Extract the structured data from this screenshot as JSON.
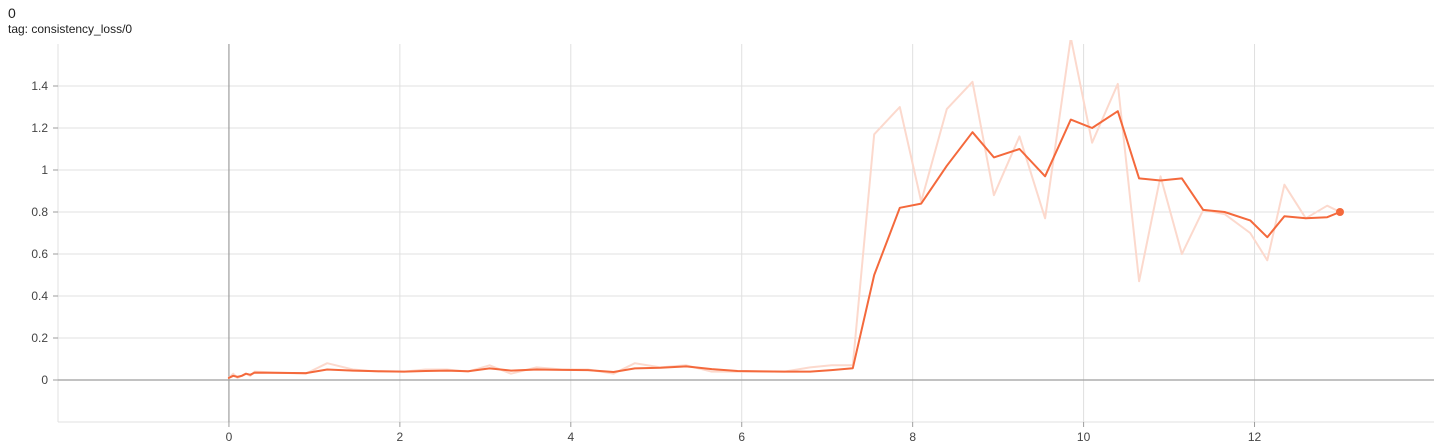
{
  "header": {
    "run_name": "0",
    "tag_prefix": "tag: ",
    "tag": "consistency_loss/0"
  },
  "colors": {
    "smoothed_line": "#f4693c",
    "raw_line": "#fcd9cd",
    "grid": "#e0e0e0",
    "axis_zero": "#9e9e9e"
  },
  "chart_data": {
    "type": "line",
    "title": "",
    "xlabel": "",
    "ylabel": "",
    "xlim": [
      -2,
      14.1
    ],
    "ylim": [
      -0.2,
      1.6
    ],
    "x_ticks": [
      0,
      2,
      4,
      6,
      8,
      10,
      12
    ],
    "y_ticks": [
      0,
      0.2,
      0.4,
      0.6,
      0.8,
      1,
      1.2,
      1.4
    ],
    "x_tick_labels": [
      "0",
      "2",
      "4",
      "6",
      "8",
      "10",
      "12"
    ],
    "y_tick_labels": [
      "0",
      "0.2",
      "0.4",
      "0.6",
      "0.8",
      "1",
      "1.2",
      "1.4"
    ],
    "grid": true,
    "series": [
      {
        "role": "raw",
        "color": "#fcd9cd",
        "x": [
          0,
          0.05,
          0.1,
          0.15,
          0.2,
          0.25,
          0.3,
          0.9,
          1.15,
          1.45,
          1.75,
          2.05,
          2.3,
          2.55,
          2.8,
          3.05,
          3.3,
          3.6,
          3.9,
          4.2,
          4.5,
          4.75,
          5.05,
          5.35,
          5.65,
          5.95,
          6.25,
          6.5,
          6.8,
          7.05,
          7.3,
          7.55,
          7.85,
          8.1,
          8.4,
          8.7,
          8.95,
          9.25,
          9.55,
          9.85,
          10.1,
          10.4,
          10.65,
          10.9,
          11.15,
          11.4,
          11.65,
          11.95,
          12.15,
          12.35,
          12.6,
          12.85,
          13.0
        ],
        "y": [
          0.01,
          0.03,
          0.01,
          0.02,
          0.03,
          0.02,
          0.04,
          0.03,
          0.08,
          0.05,
          0.04,
          0.04,
          0.05,
          0.05,
          0.04,
          0.07,
          0.03,
          0.06,
          0.05,
          0.05,
          0.03,
          0.08,
          0.06,
          0.07,
          0.04,
          0.04,
          0.04,
          0.04,
          0.06,
          0.07,
          0.07,
          1.17,
          1.3,
          0.85,
          1.29,
          1.42,
          0.88,
          1.16,
          0.77,
          1.63,
          1.13,
          1.41,
          0.47,
          0.97,
          0.6,
          0.81,
          0.79,
          0.7,
          0.57,
          0.93,
          0.77,
          0.83,
          0.8
        ]
      },
      {
        "role": "smoothed",
        "color": "#f4693c",
        "x": [
          0,
          0.05,
          0.1,
          0.15,
          0.2,
          0.25,
          0.3,
          0.9,
          1.15,
          1.45,
          1.75,
          2.05,
          2.3,
          2.55,
          2.8,
          3.05,
          3.3,
          3.6,
          3.9,
          4.2,
          4.5,
          4.75,
          5.05,
          5.35,
          5.65,
          5.95,
          6.25,
          6.5,
          6.8,
          7.05,
          7.3,
          7.55,
          7.85,
          8.1,
          8.4,
          8.7,
          8.95,
          9.25,
          9.55,
          9.85,
          10.1,
          10.4,
          10.65,
          10.9,
          11.15,
          11.4,
          11.65,
          11.95,
          12.15,
          12.35,
          12.6,
          12.85,
          13.0
        ],
        "y": [
          0.01,
          0.02,
          0.015,
          0.02,
          0.03,
          0.025,
          0.035,
          0.033,
          0.05,
          0.045,
          0.042,
          0.04,
          0.043,
          0.045,
          0.042,
          0.055,
          0.045,
          0.05,
          0.048,
          0.047,
          0.038,
          0.055,
          0.058,
          0.065,
          0.052,
          0.043,
          0.041,
          0.04,
          0.04,
          0.047,
          0.056,
          0.5,
          0.82,
          0.84,
          1.02,
          1.18,
          1.06,
          1.1,
          0.97,
          1.24,
          1.2,
          1.28,
          0.96,
          0.95,
          0.96,
          0.81,
          0.8,
          0.76,
          0.68,
          0.78,
          0.77,
          0.775,
          0.8
        ]
      }
    ]
  }
}
